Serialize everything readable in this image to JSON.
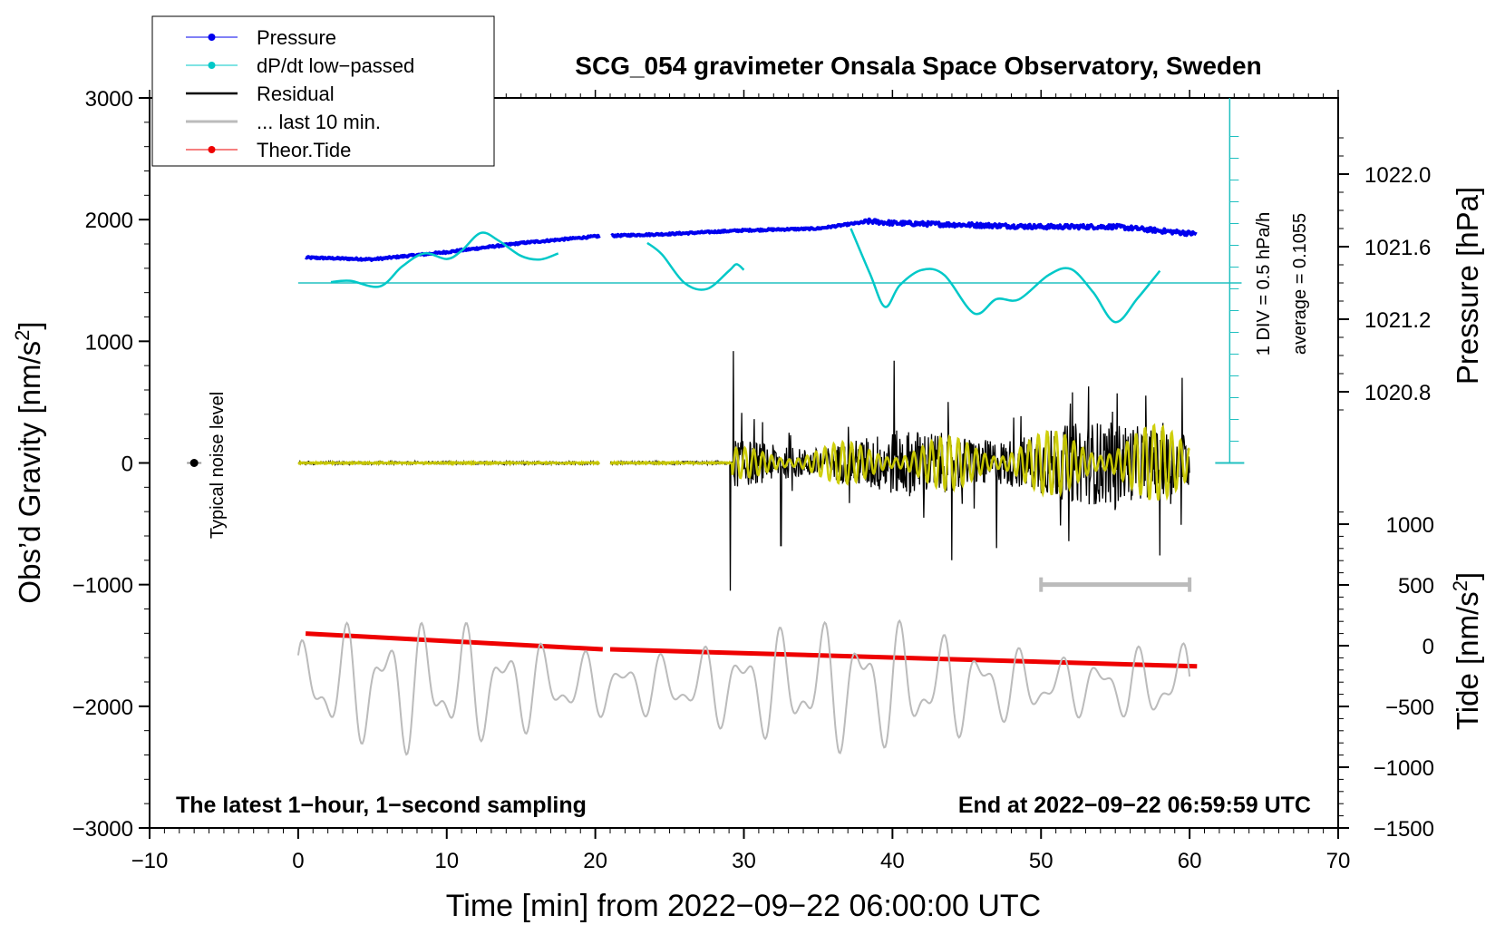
{
  "chart_data": {
    "type": "line",
    "title": "SCG_054 gravimeter Onsala Space Observatory, Sweden",
    "xlabel": "Time [min] from 2022−09−22 06:00:00 UTC",
    "ylabel_left": "Obs’d Gravity [nm/s",
    "ylabel_left_sup": "2",
    "ylabel_left_end": "]",
    "ylabel_pressure": "Pressure [hPa]",
    "ylabel_tide": "Tide [nm/s",
    "ylabel_tide_sup": "2",
    "ylabel_tide_end": "]",
    "xlim": [
      -10,
      70
    ],
    "ylim": [
      -3000,
      3000
    ],
    "x_ticks": [
      "−10",
      "0",
      "10",
      "20",
      "30",
      "40",
      "50",
      "60",
      "70"
    ],
    "x_tick_values": [
      -10,
      0,
      10,
      20,
      30,
      40,
      50,
      60,
      70
    ],
    "y_ticks": [
      "−3000",
      "−2000",
      "−1000",
      "0",
      "1000",
      "2000",
      "3000"
    ],
    "y_tick_values": [
      -3000,
      -2000,
      -1000,
      0,
      1000,
      2000,
      3000
    ],
    "pressure_ticks": [
      "1020.8",
      "1021.2",
      "1021.6",
      "1022.0"
    ],
    "pressure_tick_values": [
      1020.8,
      1021.2,
      1021.6,
      1022.0
    ],
    "tide_ticks": [
      "−1500",
      "−1000",
      "−500",
      "0",
      "500",
      "1000"
    ],
    "tide_tick_values": [
      -1500,
      -1000,
      -500,
      0,
      500,
      1000
    ],
    "legend": [
      {
        "label": "Pressure",
        "color": "#0000ee",
        "marker": true
      },
      {
        "label": "dP/dt low−passed",
        "color": "#00c8c8",
        "marker": true
      },
      {
        "label": "Residual",
        "color": "#000000",
        "marker": false
      },
      {
        "label": "... last 10 min.",
        "color": "#bbbbbb",
        "marker": false
      },
      {
        "label": "Theor.Tide",
        "color": "#ee0000",
        "marker": true
      }
    ],
    "annotations": {
      "noise_label": "Typical noise level",
      "scale_div": "1 DIV = 0.5 hPa/h",
      "scale_avg": "average = 0.1055",
      "bottom_left": "The latest 1−hour, 1−second sampling",
      "bottom_right": "End at 2022−09−22 06:59:59 UTC"
    },
    "series": [
      {
        "name": "Pressure",
        "color": "#0000ee",
        "unit": "hPa",
        "points": [
          [
            0.5,
            1021.54
          ],
          [
            5,
            1021.53
          ],
          [
            10,
            1021.57
          ],
          [
            15,
            1021.62
          ],
          [
            20.5,
            1021.66
          ],
          [
            21,
            1021.66
          ],
          [
            25,
            1021.67
          ],
          [
            30,
            1021.69
          ],
          [
            35,
            1021.7
          ],
          [
            38.5,
            1021.74
          ],
          [
            40,
            1021.73
          ],
          [
            45,
            1021.72
          ],
          [
            50,
            1021.71
          ],
          [
            55,
            1021.71
          ],
          [
            60.5,
            1021.67
          ]
        ]
      },
      {
        "name": "dP/dt low−passed",
        "color": "#00c8c8",
        "unit": "hPa/h",
        "segments": [
          [
            [
              2.2,
              0.02
            ],
            [
              3.5,
              0.05
            ],
            [
              5.5,
              -0.08
            ],
            [
              7,
              0.38
            ],
            [
              8.5,
              0.68
            ],
            [
              10,
              0.55
            ],
            [
              11,
              0.74
            ],
            [
              12.3,
              1.15
            ],
            [
              13.5,
              0.97
            ],
            [
              15,
              0.62
            ],
            [
              16.3,
              0.54
            ],
            [
              17.5,
              0.68
            ]
          ],
          [
            [
              23.5,
              0.92
            ],
            [
              24.5,
              0.65
            ],
            [
              26,
              0.0
            ],
            [
              27.5,
              -0.14
            ],
            [
              29,
              0.28
            ],
            [
              29.5,
              0.43
            ],
            [
              30,
              0.3
            ]
          ],
          [
            [
              37.2,
              1.25
            ],
            [
              38.5,
              0.2
            ],
            [
              39.5,
              -0.55
            ],
            [
              40.5,
              -0.05
            ],
            [
              42,
              0.3
            ],
            [
              43.5,
              0.18
            ],
            [
              45.5,
              -0.7
            ],
            [
              47,
              -0.37
            ],
            [
              48.5,
              -0.38
            ],
            [
              50.5,
              0.18
            ],
            [
              52,
              0.32
            ],
            [
              53.5,
              -0.21
            ],
            [
              55,
              -0.9
            ],
            [
              56.5,
              -0.35
            ],
            [
              58,
              0.28
            ]
          ]
        ]
      },
      {
        "name": "Residual",
        "color": "#000000",
        "unit": "nm/s²"
      },
      {
        "name": "... last 10 min.",
        "color": "#bbbbbb",
        "unit": "nm/s²"
      },
      {
        "name": "Theor.Tide",
        "color": "#ee0000",
        "unit": "nm/s²",
        "points": [
          [
            0.5,
            100
          ],
          [
            20.5,
            -30
          ],
          [
            21,
            -30
          ],
          [
            60.5,
            -170
          ]
        ]
      }
    ],
    "gap_min": [
      20.3,
      21.0
    ],
    "high_activity_start_min": 29.2,
    "residual_peaks": [
      [
        29.1,
        -1050
      ],
      [
        29.3,
        920
      ],
      [
        32.5,
        -680
      ],
      [
        40.1,
        840
      ],
      [
        44,
        -800
      ],
      [
        47,
        -700
      ],
      [
        58,
        -760
      ],
      [
        59.5,
        700
      ]
    ],
    "last_10_min_range": [
      50,
      60
    ],
    "last_10_min_bar_value": -1000,
    "noise_marker": {
      "x": -7,
      "y": 0
    }
  }
}
